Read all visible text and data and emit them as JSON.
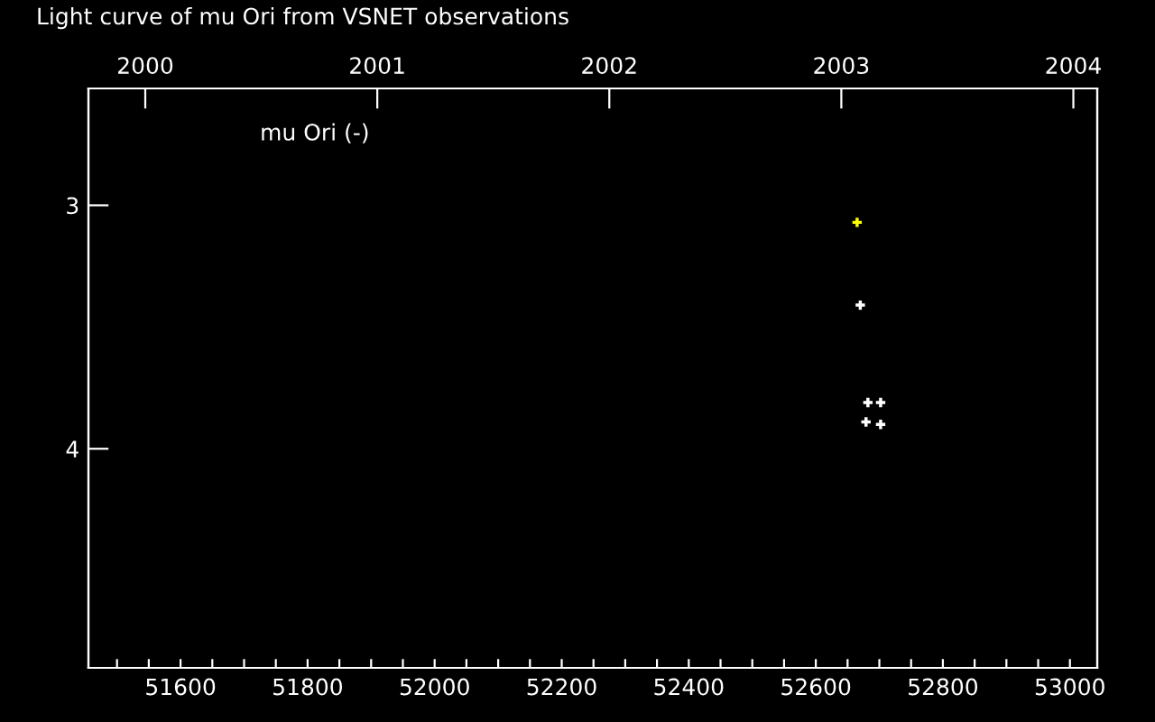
{
  "chart_data": {
    "type": "scatter",
    "title": "Light curve of mu Ori from VSNET observations",
    "annotations": [
      "mu Ori (-)"
    ],
    "marker": "cross",
    "series": [
      {
        "color": "#ffff00",
        "x": [
          52665
        ],
        "values": [
          3.07
        ]
      },
      {
        "color": "#ffffff",
        "x": [
          52670,
          52682,
          52702,
          52679,
          52702
        ],
        "values": [
          3.41,
          3.81,
          3.81,
          3.89,
          3.9
        ]
      }
    ],
    "xlim": [
      51455,
      53043
    ],
    "xticks": [
      {
        "value": 51500,
        "label": null
      },
      {
        "value": 51550,
        "label": null
      },
      51600,
      {
        "value": 51650,
        "label": null
      },
      {
        "value": 51700,
        "label": null
      },
      {
        "value": 51750,
        "label": null
      },
      51800,
      {
        "value": 51850,
        "label": null
      },
      {
        "value": 51900,
        "label": null
      },
      {
        "value": 51950,
        "label": null
      },
      52000,
      {
        "value": 52050,
        "label": null
      },
      {
        "value": 52100,
        "label": null
      },
      {
        "value": 52150,
        "label": null
      },
      52200,
      {
        "value": 52250,
        "label": null
      },
      {
        "value": 52300,
        "label": null
      },
      {
        "value": 52350,
        "label": null
      },
      52400,
      {
        "value": 52450,
        "label": null
      },
      {
        "value": 52500,
        "label": null
      },
      {
        "value": 52550,
        "label": null
      },
      52600,
      {
        "value": 52650,
        "label": null
      },
      {
        "value": 52700,
        "label": null
      },
      {
        "value": 52750,
        "label": null
      },
      52800,
      {
        "value": 52850,
        "label": null
      },
      {
        "value": 52900,
        "label": null
      },
      {
        "value": 52950,
        "label": null
      },
      53000
    ],
    "x2lim": [
      1999.755,
      2004.103
    ],
    "x2ticks": [
      2000,
      2001,
      2002,
      2003,
      2004
    ],
    "ylim": [
      4.9,
      2.52
    ],
    "yticks": [
      3,
      4
    ],
    "grid": false,
    "legend": false
  }
}
